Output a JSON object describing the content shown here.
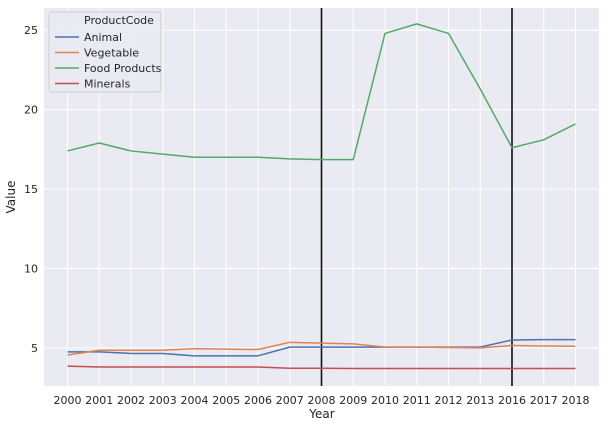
{
  "chart_data": {
    "type": "line",
    "xlabel": "Year",
    "ylabel": "Value",
    "x": [
      2000,
      2001,
      2002,
      2003,
      2004,
      2005,
      2006,
      2007,
      2008,
      2009,
      2010,
      2011,
      2012,
      2013,
      2016,
      2017,
      2018
    ],
    "x_tick_labels": [
      "2000",
      "2001",
      "2002",
      "2003",
      "2004",
      "2005",
      "2006",
      "2007",
      "2008",
      "2009",
      "2010",
      "2011",
      "2012",
      "2013",
      "2016",
      "2017",
      "2018"
    ],
    "y_ticks": [
      5,
      10,
      15,
      20,
      25
    ],
    "ylim": [
      2.6,
      26.4
    ],
    "grid": true,
    "legend": {
      "title": "ProductCode",
      "placement": "top-left"
    },
    "vertical_lines_at": [
      "2008",
      "2016"
    ],
    "series": [
      {
        "name": "Animal",
        "color": "#4c72b0",
        "values": [
          4.75,
          4.75,
          4.65,
          4.65,
          4.5,
          4.5,
          4.5,
          5.05,
          5.05,
          5.05,
          5.05,
          5.05,
          5.05,
          5.05,
          5.5,
          5.52,
          5.52
        ]
      },
      {
        "name": "Vegetable",
        "color": "#dd8452",
        "values": [
          4.55,
          4.85,
          4.85,
          4.85,
          4.95,
          4.92,
          4.9,
          5.35,
          5.3,
          5.25,
          5.05,
          5.05,
          5.02,
          5.0,
          5.15,
          5.12,
          5.1
        ]
      },
      {
        "name": "Food Products",
        "color": "#55a868",
        "values": [
          17.4,
          17.9,
          17.4,
          17.2,
          17.0,
          17.0,
          17.0,
          16.9,
          16.85,
          16.85,
          24.8,
          25.4,
          24.8,
          21.3,
          17.6,
          18.1,
          19.1
        ]
      },
      {
        "name": "Minerals",
        "color": "#c44e52",
        "values": [
          3.85,
          3.8,
          3.8,
          3.8,
          3.8,
          3.8,
          3.8,
          3.72,
          3.72,
          3.7,
          3.7,
          3.7,
          3.7,
          3.7,
          3.7,
          3.7,
          3.7
        ]
      }
    ]
  }
}
